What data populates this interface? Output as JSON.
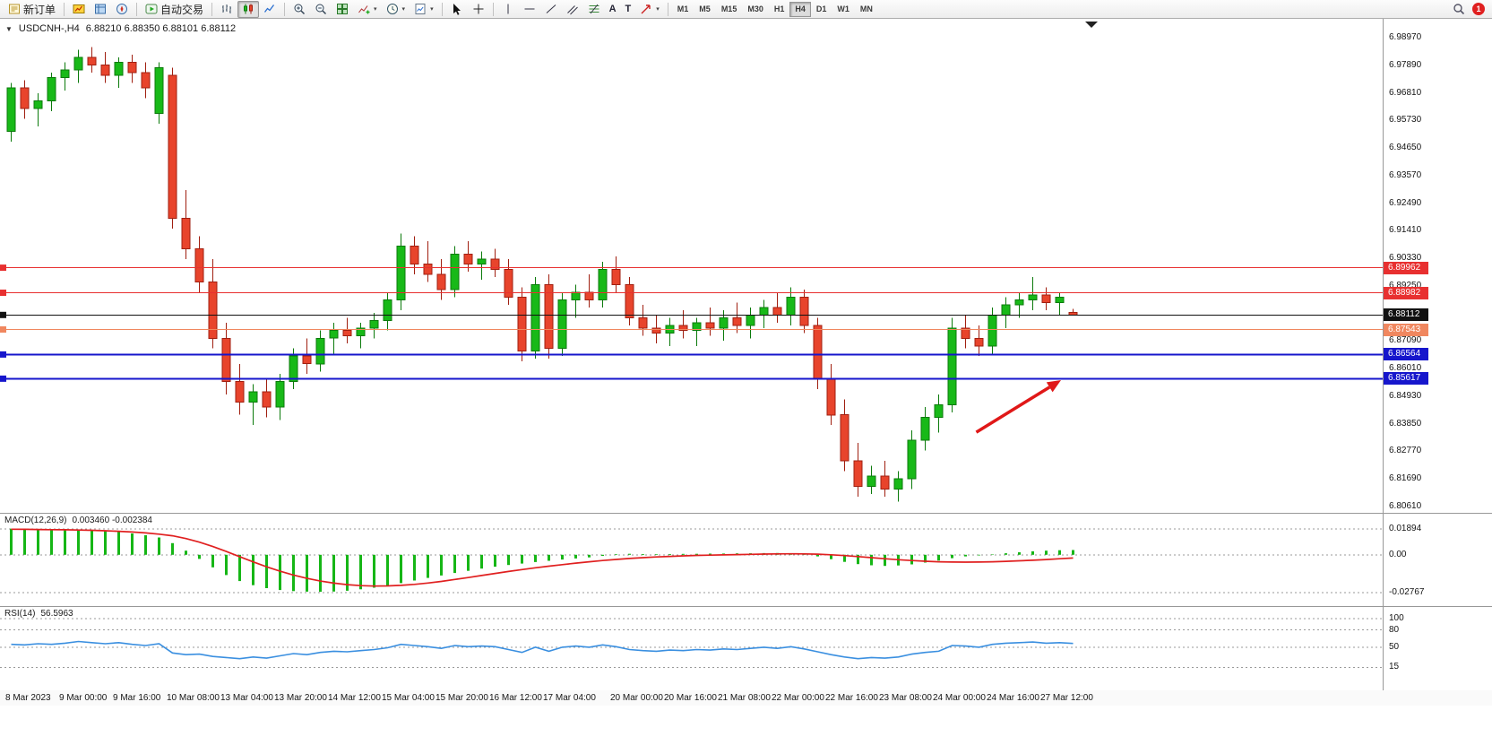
{
  "toolbar": {
    "new_order_label": "新订单",
    "autotrading_label": "自动交易",
    "text_tool_label": "A",
    "text_label_tool_label": "T",
    "timeframes": [
      "M1",
      "M5",
      "M15",
      "M30",
      "H1",
      "H4",
      "D1",
      "W1",
      "MN"
    ],
    "active_timeframe": "H4",
    "notification_count": "1"
  },
  "icons": {
    "dropdown": "▾",
    "collapse": "▼"
  },
  "chart": {
    "symbol_period": "USDCNH-,H4",
    "ohlc": "6.88210 6.88350 6.88101 6.88112",
    "macd_name": "MACD(12,26,9)",
    "macd_values": "0.003460 -0.002384",
    "rsi_name": "RSI(14)",
    "rsi_value": "56.5963"
  },
  "chart_data": [
    {
      "type": "candlestick",
      "symbol": "USDCNH-",
      "timeframe": "H4",
      "ylim": [
        6.8061,
        6.9897
      ],
      "y_ticks": [
        "6.98970",
        "6.97890",
        "6.96810",
        "6.95730",
        "6.94650",
        "6.93570",
        "6.92490",
        "6.91410",
        "6.90330",
        "6.89250",
        "6.88170",
        "6.87090",
        "6.86010",
        "6.84930",
        "6.83850",
        "6.82770",
        "6.81690",
        "6.80610"
      ],
      "colors": {
        "up": "#18b918",
        "up_edge": "#0b7a0b",
        "down": "#e8442c",
        "down_edge": "#a01f10"
      },
      "hlines": [
        {
          "value": 6.89962,
          "label": "6.89962",
          "color": "#e83030",
          "width": 1.2
        },
        {
          "value": 6.88982,
          "label": "6.88982",
          "color": "#e83030",
          "width": 1.2
        },
        {
          "value": 6.88112,
          "label": "6.88112",
          "color": "#111111",
          "width": 1
        },
        {
          "value": 6.87543,
          "label": "6.87543",
          "color": "#f0875f",
          "width": 1.2
        },
        {
          "value": 6.86564,
          "label": "6.86564",
          "color": "#1616cc",
          "width": 2
        },
        {
          "value": 6.85617,
          "label": "6.85617",
          "color": "#1616cc",
          "width": 2
        }
      ],
      "arrow": {
        "i1": 71.8,
        "p1": 6.8352,
        "i2": 78.1,
        "p2": 6.8556,
        "color": "#e01818"
      },
      "time_labels": [
        {
          "i": 0,
          "t": "8 Mar 2023"
        },
        {
          "i": 4,
          "t": "9 Mar 00:00"
        },
        {
          "i": 8,
          "t": "9 Mar 16:00"
        },
        {
          "i": 12,
          "t": "10 Mar 08:00"
        },
        {
          "i": 16,
          "t": "13 Mar 04:00"
        },
        {
          "i": 20,
          "t": "13 Mar 20:00"
        },
        {
          "i": 24,
          "t": "14 Mar 12:00"
        },
        {
          "i": 28,
          "t": "15 Mar 04:00"
        },
        {
          "i": 32,
          "t": "15 Mar 20:00"
        },
        {
          "i": 36,
          "t": "16 Mar 12:00"
        },
        {
          "i": 40,
          "t": "17 Mar 04:00"
        },
        {
          "i": 45,
          "t": "20 Mar 00:00"
        },
        {
          "i": 49,
          "t": "20 Mar 16:00"
        },
        {
          "i": 53,
          "t": "21 Mar 08:00"
        },
        {
          "i": 57,
          "t": "22 Mar 00:00"
        },
        {
          "i": 61,
          "t": "22 Mar 16:00"
        },
        {
          "i": 65,
          "t": "23 Mar 08:00"
        },
        {
          "i": 69,
          "t": "24 Mar 00:00"
        },
        {
          "i": 73,
          "t": "24 Mar 16:00"
        },
        {
          "i": 77,
          "t": "27 Mar 12:00"
        }
      ],
      "candles": [
        [
          6.953,
          6.972,
          6.949,
          6.97
        ],
        [
          6.97,
          6.973,
          6.958,
          6.962
        ],
        [
          6.962,
          6.968,
          6.955,
          6.965
        ],
        [
          6.965,
          6.976,
          6.961,
          6.974
        ],
        [
          6.974,
          6.98,
          6.969,
          6.977
        ],
        [
          6.977,
          6.985,
          6.972,
          6.982
        ],
        [
          6.982,
          6.986,
          6.976,
          6.979
        ],
        [
          6.979,
          6.984,
          6.972,
          6.975
        ],
        [
          6.975,
          6.982,
          6.97,
          6.98
        ],
        [
          6.98,
          6.983,
          6.972,
          6.976
        ],
        [
          6.976,
          6.98,
          6.966,
          6.97
        ],
        [
          6.96,
          6.98,
          6.956,
          6.978
        ],
        [
          6.975,
          6.978,
          6.915,
          6.919
        ],
        [
          6.919,
          6.93,
          6.903,
          6.907
        ],
        [
          6.907,
          6.912,
          6.89,
          6.894
        ],
        [
          6.894,
          6.903,
          6.868,
          6.872
        ],
        [
          6.872,
          6.878,
          6.85,
          6.855
        ],
        [
          6.855,
          6.862,
          6.842,
          6.847
        ],
        [
          6.847,
          6.854,
          6.838,
          6.851
        ],
        [
          6.851,
          6.856,
          6.841,
          6.845
        ],
        [
          6.845,
          6.858,
          6.84,
          6.855
        ],
        [
          6.855,
          6.868,
          6.852,
          6.865
        ],
        [
          6.865,
          6.872,
          6.858,
          6.862
        ],
        [
          6.862,
          6.875,
          6.859,
          6.872
        ],
        [
          6.872,
          6.878,
          6.866,
          6.875
        ],
        [
          6.875,
          6.88,
          6.87,
          6.873
        ],
        [
          6.873,
          6.878,
          6.868,
          6.876
        ],
        [
          6.876,
          6.882,
          6.872,
          6.879
        ],
        [
          6.879,
          6.89,
          6.875,
          6.887
        ],
        [
          6.887,
          6.913,
          6.883,
          6.908
        ],
        [
          6.908,
          6.912,
          6.897,
          6.901
        ],
        [
          6.901,
          6.91,
          6.894,
          6.897
        ],
        [
          6.897,
          6.903,
          6.887,
          6.891
        ],
        [
          6.891,
          6.908,
          6.888,
          6.905
        ],
        [
          6.905,
          6.91,
          6.898,
          6.901
        ],
        [
          6.901,
          6.906,
          6.895,
          6.903
        ],
        [
          6.903,
          6.907,
          6.896,
          6.899
        ],
        [
          6.899,
          6.903,
          6.885,
          6.888
        ],
        [
          6.888,
          6.892,
          6.863,
          6.867
        ],
        [
          6.867,
          6.896,
          6.864,
          6.893
        ],
        [
          6.893,
          6.897,
          6.864,
          6.868
        ],
        [
          6.868,
          6.89,
          6.865,
          6.887
        ],
        [
          6.887,
          6.893,
          6.88,
          6.89
        ],
        [
          6.89,
          6.897,
          6.884,
          6.887
        ],
        [
          6.887,
          6.902,
          6.884,
          6.899
        ],
        [
          6.899,
          6.904,
          6.89,
          6.893
        ],
        [
          6.893,
          6.896,
          6.877,
          6.88
        ],
        [
          6.88,
          6.885,
          6.873,
          6.876
        ],
        [
          6.876,
          6.881,
          6.87,
          6.874
        ],
        [
          6.874,
          6.88,
          6.869,
          6.877
        ],
        [
          6.877,
          6.883,
          6.872,
          6.875
        ],
        [
          6.875,
          6.88,
          6.869,
          6.878
        ],
        [
          6.878,
          6.884,
          6.873,
          6.876
        ],
        [
          6.876,
          6.883,
          6.871,
          6.88
        ],
        [
          6.88,
          6.886,
          6.874,
          6.877
        ],
        [
          6.877,
          6.884,
          6.872,
          6.881
        ],
        [
          6.881,
          6.887,
          6.876,
          6.884
        ],
        [
          6.884,
          6.89,
          6.878,
          6.881
        ],
        [
          6.881,
          6.892,
          6.877,
          6.888
        ],
        [
          6.888,
          6.891,
          6.874,
          6.877
        ],
        [
          6.877,
          6.88,
          6.852,
          6.856
        ],
        [
          6.856,
          6.862,
          6.838,
          6.842
        ],
        [
          6.842,
          6.848,
          6.82,
          6.824
        ],
        [
          6.824,
          6.831,
          6.81,
          6.814
        ],
        [
          6.814,
          6.822,
          6.811,
          6.818
        ],
        [
          6.818,
          6.824,
          6.81,
          6.813
        ],
        [
          6.813,
          6.82,
          6.808,
          6.817
        ],
        [
          6.817,
          6.836,
          6.813,
          6.832
        ],
        [
          6.832,
          6.845,
          6.828,
          6.841
        ],
        [
          6.841,
          6.85,
          6.835,
          6.846
        ],
        [
          6.846,
          6.88,
          6.843,
          6.876
        ],
        [
          6.876,
          6.881,
          6.868,
          6.872
        ],
        [
          6.872,
          6.877,
          6.865,
          6.869
        ],
        [
          6.869,
          6.884,
          6.866,
          6.881
        ],
        [
          6.881,
          6.888,
          6.876,
          6.885
        ],
        [
          6.885,
          6.89,
          6.88,
          6.887
        ],
        [
          6.887,
          6.896,
          6.883,
          6.889
        ],
        [
          6.889,
          6.892,
          6.883,
          6.886
        ],
        [
          6.886,
          6.89,
          6.881,
          6.888
        ],
        [
          6.8821,
          6.8835,
          6.881,
          6.88112
        ]
      ]
    },
    {
      "type": "macd",
      "name": "MACD(12,26,9)",
      "ylim": [
        -0.0374,
        0.0299
      ],
      "levels": [
        {
          "value": 0.01894,
          "label": "0.01894"
        },
        {
          "value": 0.0,
          "label": "0.00"
        },
        {
          "value": -0.02767,
          "label": "-0.02767"
        }
      ],
      "colors": {
        "histogram": "#16b616",
        "signal": "#e02020"
      },
      "histogram": [
        0.019,
        0.0188,
        0.0186,
        0.0183,
        0.0181,
        0.018,
        0.0177,
        0.0172,
        0.0165,
        0.0155,
        0.0142,
        0.0126,
        0.0085,
        0.003,
        -0.003,
        -0.0092,
        -0.0148,
        -0.0192,
        -0.0222,
        -0.0243,
        -0.0257,
        -0.0265,
        -0.0269,
        -0.027,
        -0.0268,
        -0.0262,
        -0.0252,
        -0.024,
        -0.0225,
        -0.0207,
        -0.0188,
        -0.0169,
        -0.0151,
        -0.0133,
        -0.0117,
        -0.0101,
        -0.0087,
        -0.0075,
        -0.0064,
        -0.0053,
        -0.0044,
        -0.0035,
        -0.0027,
        -0.0019,
        -0.0008,
        0.0004,
        0.0007,
        0.0005,
        0.0004,
        0.0005,
        0.0006,
        0.0007,
        0.0008,
        0.0009,
        0.001,
        0.0011,
        0.0012,
        0.0013,
        0.0011,
        0.0005,
        -0.0012,
        -0.0032,
        -0.0052,
        -0.0068,
        -0.0077,
        -0.0081,
        -0.0078,
        -0.007,
        -0.0057,
        -0.0042,
        -0.0025,
        -0.0012,
        -0.0005,
        0.0003,
        0.0011,
        0.0018,
        0.0025,
        0.003,
        0.0033,
        0.00346
      ],
      "signal": [
        0.0186,
        0.0185,
        0.0184,
        0.0183,
        0.0182,
        0.018,
        0.0178,
        0.0175,
        0.0171,
        0.0166,
        0.0159,
        0.015,
        0.0138,
        0.0118,
        0.0092,
        0.006,
        0.0024,
        -0.0014,
        -0.0052,
        -0.0088,
        -0.012,
        -0.0148,
        -0.0172,
        -0.0192,
        -0.0207,
        -0.0218,
        -0.0225,
        -0.0228,
        -0.0227,
        -0.0223,
        -0.0216,
        -0.0206,
        -0.0194,
        -0.018,
        -0.0166,
        -0.0151,
        -0.0136,
        -0.0122,
        -0.0108,
        -0.0095,
        -0.0083,
        -0.0072,
        -0.0061,
        -0.0051,
        -0.0042,
        -0.0034,
        -0.0027,
        -0.0021,
        -0.0016,
        -0.0012,
        -0.0008,
        -0.0005,
        -0.0003,
        -0.0001,
        0.0001,
        0.0003,
        0.0005,
        0.0006,
        0.0007,
        0.0006,
        0.0004,
        0.0,
        -0.0006,
        -0.0013,
        -0.0021,
        -0.0029,
        -0.0036,
        -0.0042,
        -0.0047,
        -0.0051,
        -0.0053,
        -0.0054,
        -0.0053,
        -0.0051,
        -0.0048,
        -0.0044,
        -0.004,
        -0.0035,
        -0.0029,
        -0.00238
      ]
    },
    {
      "type": "line",
      "name": "RSI(14)",
      "ylim": [
        -25,
        120
      ],
      "levels": [
        {
          "value": 100,
          "label": "100"
        },
        {
          "value": 80,
          "label": "80"
        },
        {
          "value": 50,
          "label": "50"
        },
        {
          "value": 15,
          "label": "15"
        }
      ],
      "color": "#3a8fe0",
      "values": [
        55,
        54,
        56,
        55,
        57,
        60,
        58,
        56,
        58,
        55,
        53,
        56,
        40,
        37,
        38,
        34,
        32,
        30,
        33,
        31,
        35,
        39,
        37,
        41,
        43,
        42,
        44,
        46,
        49,
        55,
        53,
        51,
        48,
        53,
        51,
        52,
        51,
        46,
        41,
        50,
        43,
        50,
        52,
        50,
        54,
        51,
        46,
        44,
        43,
        45,
        44,
        46,
        45,
        47,
        46,
        48,
        50,
        48,
        51,
        47,
        42,
        37,
        33,
        30,
        32,
        31,
        33,
        38,
        41,
        43,
        53,
        52,
        50,
        55,
        57,
        58,
        59,
        57,
        58,
        56.6
      ]
    }
  ]
}
